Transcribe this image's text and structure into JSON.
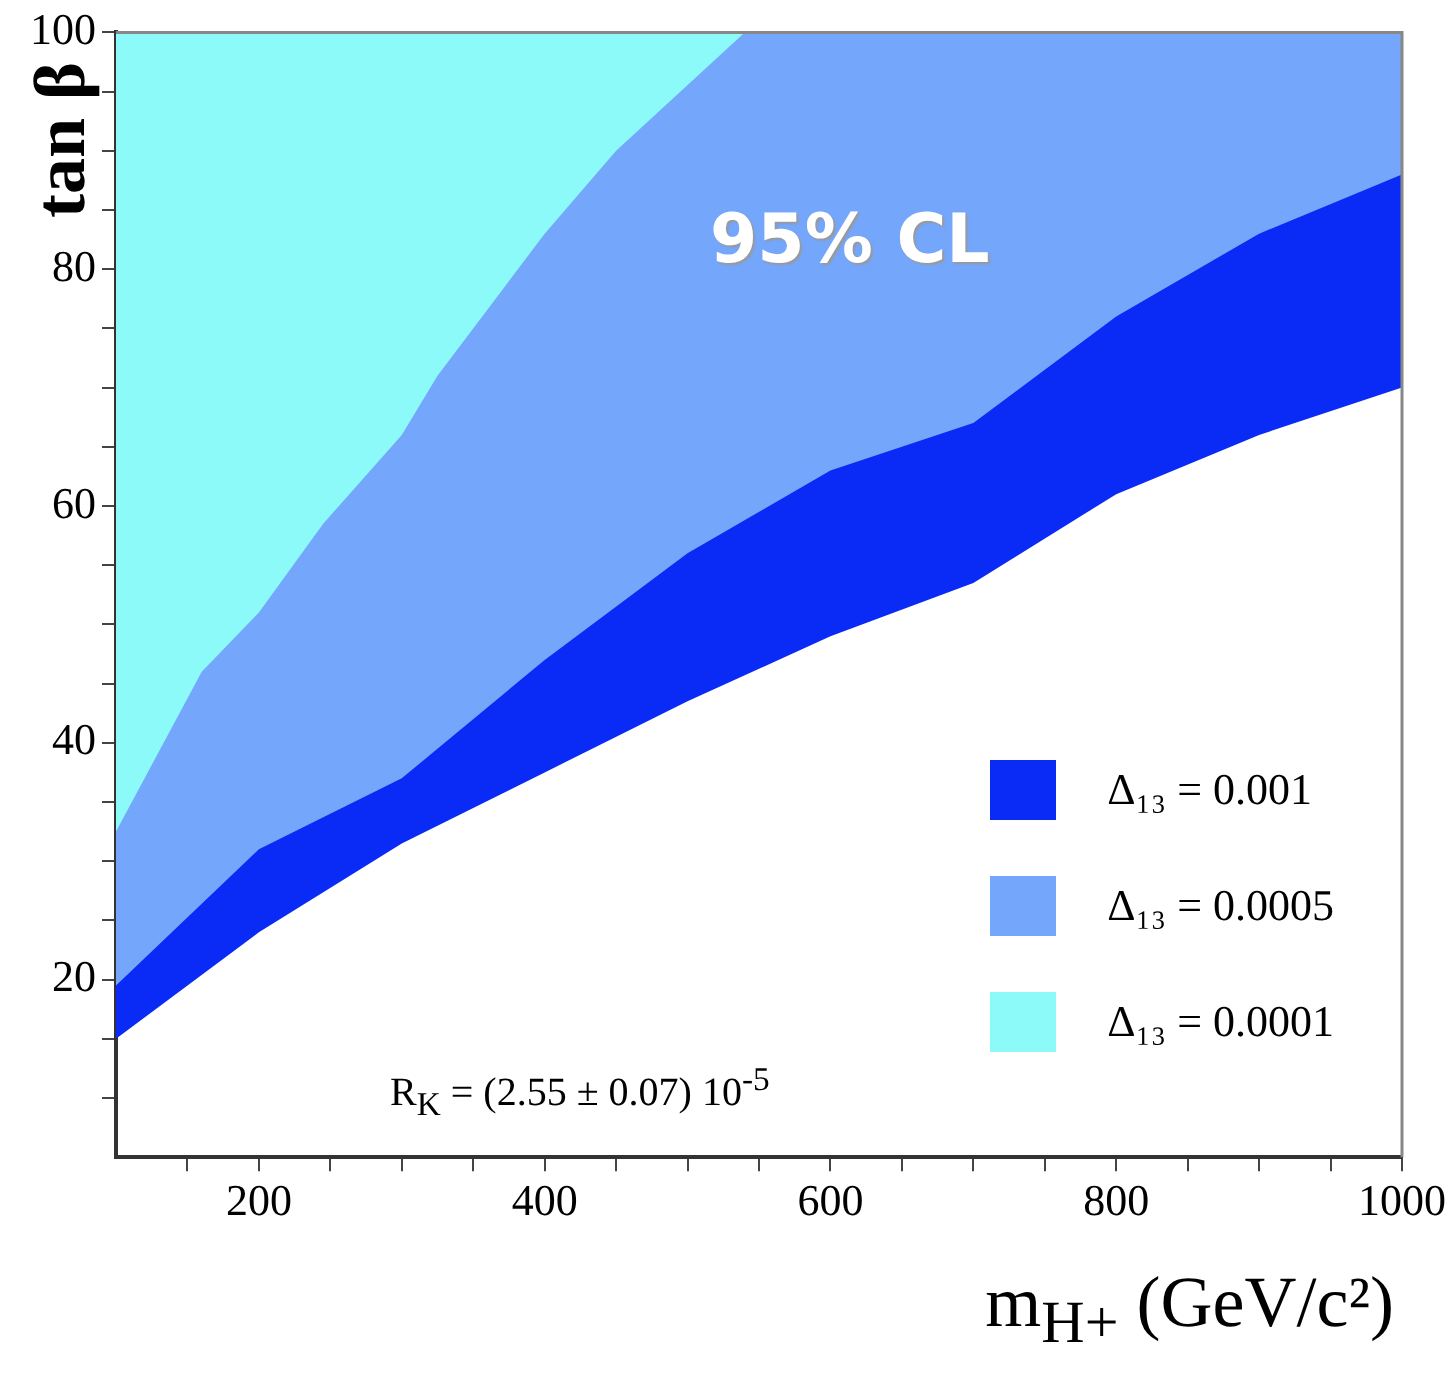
{
  "chart_data": {
    "type": "area",
    "xlabel": "m$_{H+}$ (GeV/c²)",
    "ylabel": "tan β",
    "xlim": [
      100,
      1000
    ],
    "ylim": [
      5,
      100
    ],
    "xticks": [
      {
        "value": 150,
        "label": null
      },
      200,
      {
        "value": 250,
        "label": null
      },
      {
        "value": 300,
        "label": null
      },
      {
        "value": 350,
        "label": null
      },
      400,
      {
        "value": 450,
        "label": null
      },
      {
        "value": 500,
        "label": null
      },
      {
        "value": 550,
        "label": null
      },
      600,
      {
        "value": 650,
        "label": null
      },
      {
        "value": 700,
        "label": null
      },
      {
        "value": 750,
        "label": null
      },
      800,
      {
        "value": 850,
        "label": null
      },
      {
        "value": 900,
        "label": null
      },
      {
        "value": 950,
        "label": null
      },
      1000
    ],
    "yticks": [
      {
        "value": 10,
        "label": null
      },
      {
        "value": 15,
        "label": null
      },
      20,
      {
        "value": 25,
        "label": null
      },
      {
        "value": 30,
        "label": null
      },
      {
        "value": 35,
        "label": null
      },
      40,
      {
        "value": 45,
        "label": null
      },
      {
        "value": 50,
        "label": null
      },
      {
        "value": 55,
        "label": null
      },
      60,
      {
        "value": 65,
        "label": null
      },
      {
        "value": 70,
        "label": null
      },
      {
        "value": 75,
        "label": null
      },
      80,
      {
        "value": 85,
        "label": null
      },
      {
        "value": 90,
        "label": null
      },
      {
        "value": 95,
        "label": null
      },
      100
    ],
    "grid": false,
    "legend": "bottom right",
    "series": [
      {
        "name": "Δ₁₃ = 0.001",
        "color": "#0a2af5",
        "x": [
          100,
          200,
          300,
          400,
          500,
          600,
          700,
          800,
          900,
          1000,
          1000,
          100
        ],
        "values": [
          15,
          24,
          31.5,
          37.5,
          43.5,
          49,
          53.5,
          61,
          66,
          70,
          100,
          100
        ]
      },
      {
        "name": "Δ₁₃ = 0.0005",
        "color": "#74a6fb",
        "x": [
          100,
          200,
          300,
          400,
          500,
          600,
          700,
          800,
          900,
          1000,
          1000,
          100
        ],
        "values": [
          19.5,
          31,
          37,
          47,
          56,
          63,
          67,
          76,
          83,
          88,
          100,
          100
        ]
      },
      {
        "name": "Δ₁₃ = 0.0001",
        "color": "#8dfafa",
        "x": [
          100,
          160,
          200,
          245,
          300,
          325,
          400,
          450,
          540,
          100
        ],
        "values": [
          32.5,
          46,
          51,
          58.5,
          66,
          71,
          83,
          90,
          100,
          100
        ]
      }
    ],
    "annotations": [
      "95% CL",
      "R$_{K}$ = (2.55 ± 0.07) 10$^{-5}$"
    ]
  }
}
